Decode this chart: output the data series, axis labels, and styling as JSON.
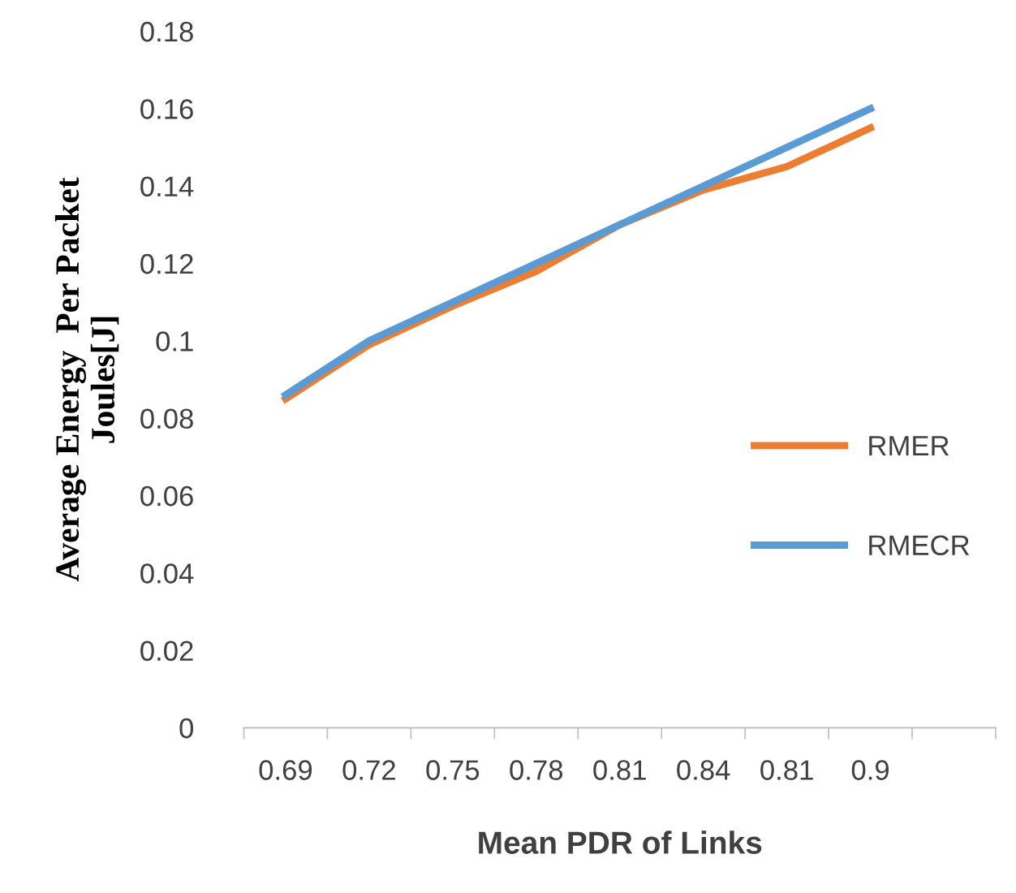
{
  "chart_data": {
    "type": "line",
    "xlabel": "Mean PDR of Links",
    "ylabel": "Average Energy  Per Packet\nJoules[J]",
    "categories": [
      "0.69",
      "0.72",
      "0.75",
      "0.78",
      "0.81",
      "0.84",
      "0.81",
      "0.9",
      null
    ],
    "series": [
      {
        "name": "RMER",
        "color": "#ed7d31",
        "values": [
          0.085,
          0.099,
          0.109,
          0.118,
          0.13,
          0.139,
          0.145,
          0.155,
          null
        ]
      },
      {
        "name": "RMECR",
        "color": "#5b9bd5",
        "values": [
          0.086,
          0.1,
          0.11,
          0.12,
          0.13,
          0.14,
          0.15,
          0.16,
          null
        ]
      }
    ],
    "ylim": [
      0,
      0.18
    ],
    "yticks": [
      0,
      0.02,
      0.04,
      0.06,
      0.08,
      0.1,
      0.12,
      0.14,
      0.16,
      0.18
    ],
    "grid": false,
    "legend": "right",
    "marker": "none",
    "line_style": "solid"
  }
}
